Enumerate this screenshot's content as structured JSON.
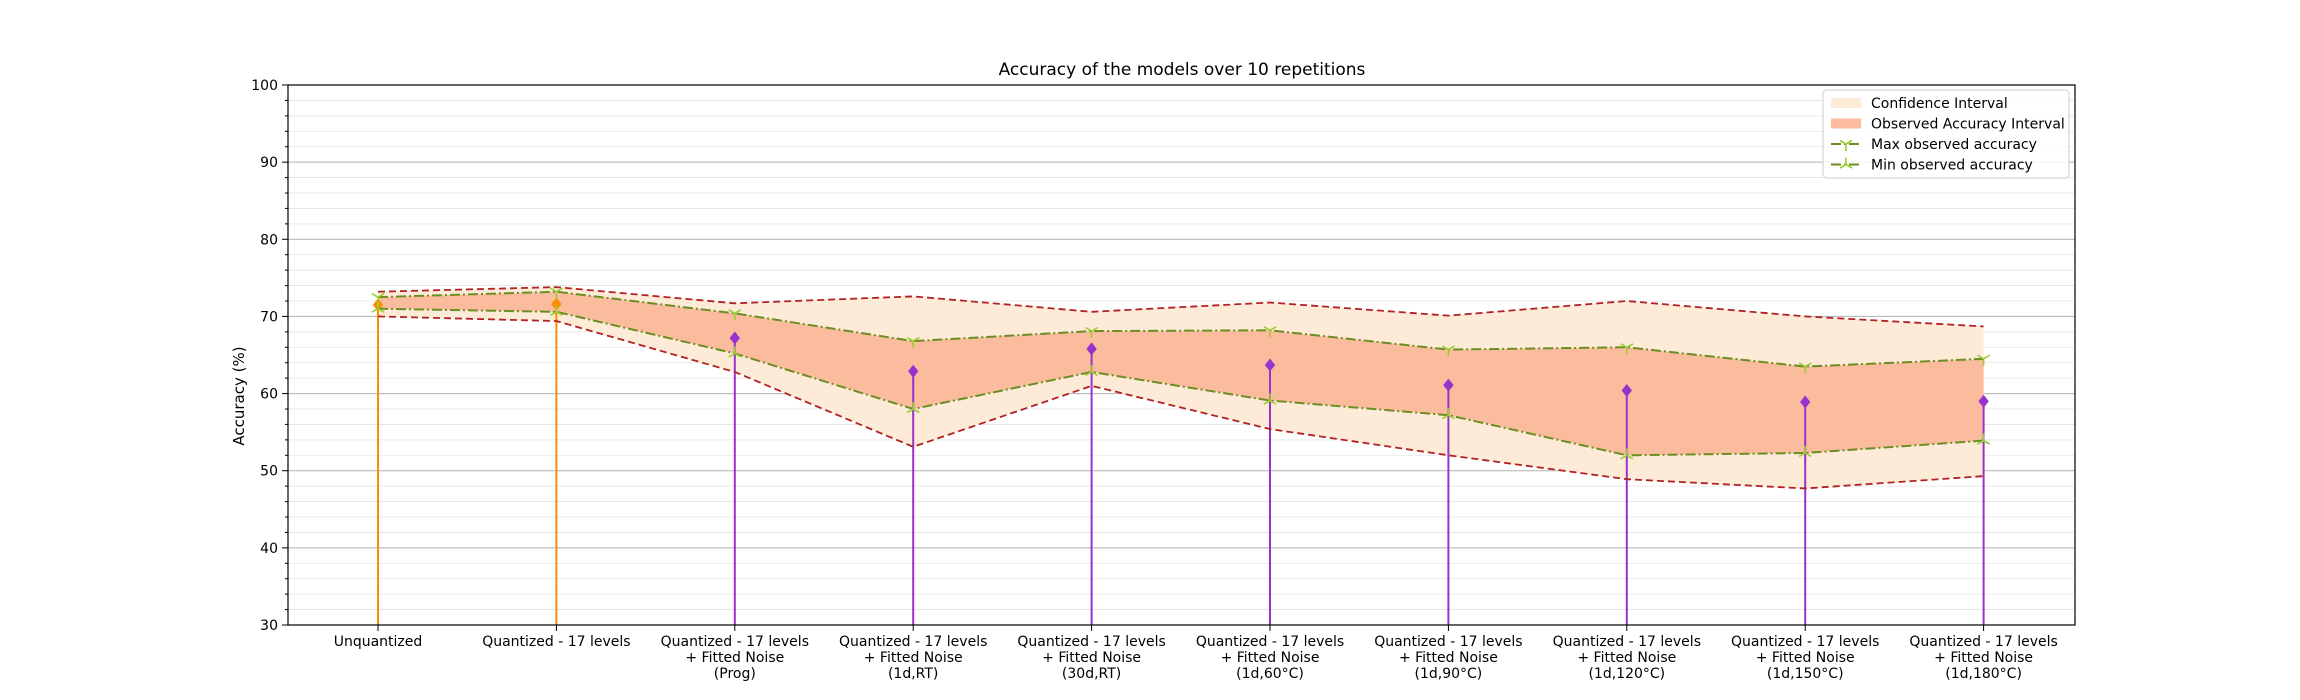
{
  "chart_data": {
    "type": "line",
    "title": "Accuracy of the models over 10 repetitions",
    "xlabel": "",
    "ylabel": "Accuracy (%)",
    "ylim": [
      30,
      100
    ],
    "yticks": [
      30,
      40,
      50,
      60,
      70,
      80,
      90,
      100
    ],
    "grid": true,
    "legend_position": "top-right",
    "categories": [
      [
        "Unquantized"
      ],
      [
        "Quantized - 17 levels"
      ],
      [
        "Quantized - 17 levels",
        "+ Fitted Noise",
        "(Prog)"
      ],
      [
        "Quantized - 17 levels",
        "+ Fitted Noise",
        "(1d,RT)"
      ],
      [
        "Quantized - 17 levels",
        "+ Fitted Noise",
        "(30d,RT)"
      ],
      [
        "Quantized - 17 levels",
        "+ Fitted Noise",
        "(1d,60°C)"
      ],
      [
        "Quantized - 17 levels",
        "+ Fitted Noise",
        "(1d,90°C)"
      ],
      [
        "Quantized - 17 levels",
        "+ Fitted Noise",
        "(1d,120°C)"
      ],
      [
        "Quantized - 17 levels",
        "+ Fitted Noise",
        "(1d,150°C)"
      ],
      [
        "Quantized - 17 levels",
        "+ Fitted Noise",
        "(1d,180°C)"
      ]
    ],
    "mean_accuracy": [
      71.5,
      71.6,
      67.2,
      62.9,
      65.8,
      63.7,
      61.1,
      60.4,
      58.9,
      59.0
    ],
    "stem_colors": [
      "#ff8c00",
      "#ff8c00",
      "#9932cc",
      "#9932cc",
      "#9932cc",
      "#9932cc",
      "#9932cc",
      "#9932cc",
      "#9932cc",
      "#9932cc"
    ],
    "ci_upper": [
      73.2,
      73.8,
      71.7,
      72.6,
      70.6,
      71.8,
      70.1,
      72.0,
      70.0,
      68.7
    ],
    "ci_lower": [
      70.0,
      69.4,
      62.8,
      53.1,
      61.0,
      55.4,
      52.0,
      48.9,
      47.7,
      49.3
    ],
    "series": [
      {
        "name": "Max observed accuracy",
        "values": [
          72.5,
          73.2,
          70.4,
          66.8,
          68.1,
          68.2,
          65.7,
          66.0,
          63.5,
          64.5
        ]
      },
      {
        "name": "Min observed accuracy",
        "values": [
          71.0,
          70.6,
          65.2,
          58.0,
          62.8,
          59.1,
          57.2,
          52.0,
          52.3,
          53.9
        ]
      }
    ],
    "legend": [
      {
        "label": "Confidence Interval",
        "kind": "patch",
        "color": "#fdebd7"
      },
      {
        "label": "Observed Accuracy Interval",
        "kind": "patch",
        "color": "#fbbc9e"
      },
      {
        "label": "Max observed accuracy",
        "kind": "line",
        "marker": "tri_down"
      },
      {
        "label": "Min observed accuracy",
        "kind": "line",
        "marker": "tri_up"
      }
    ],
    "colors": {
      "ci_fill": "#fdebd7",
      "observed_fill": "#fbbc9e",
      "ci_line": "#b22222",
      "minmax_line": "#6b8e23",
      "minmax_marker": "#9acd32"
    }
  }
}
